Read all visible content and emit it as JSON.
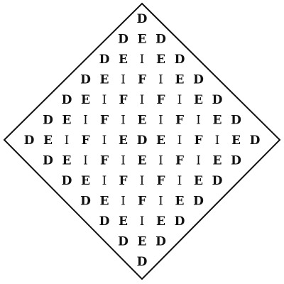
{
  "puzzle": {
    "rows": [
      "D",
      "DED",
      "DEIED",
      "DEIFIED",
      "DEIFIFIED",
      "DEIFIEIFIED",
      "DEIFIEDEIFIED",
      "DEIFIEIFIED",
      "DEIFIFIED",
      "DEIFIED",
      "DEIED",
      "DED",
      "D"
    ]
  },
  "colors": {
    "ink": "#111111",
    "background": "#ffffff"
  }
}
